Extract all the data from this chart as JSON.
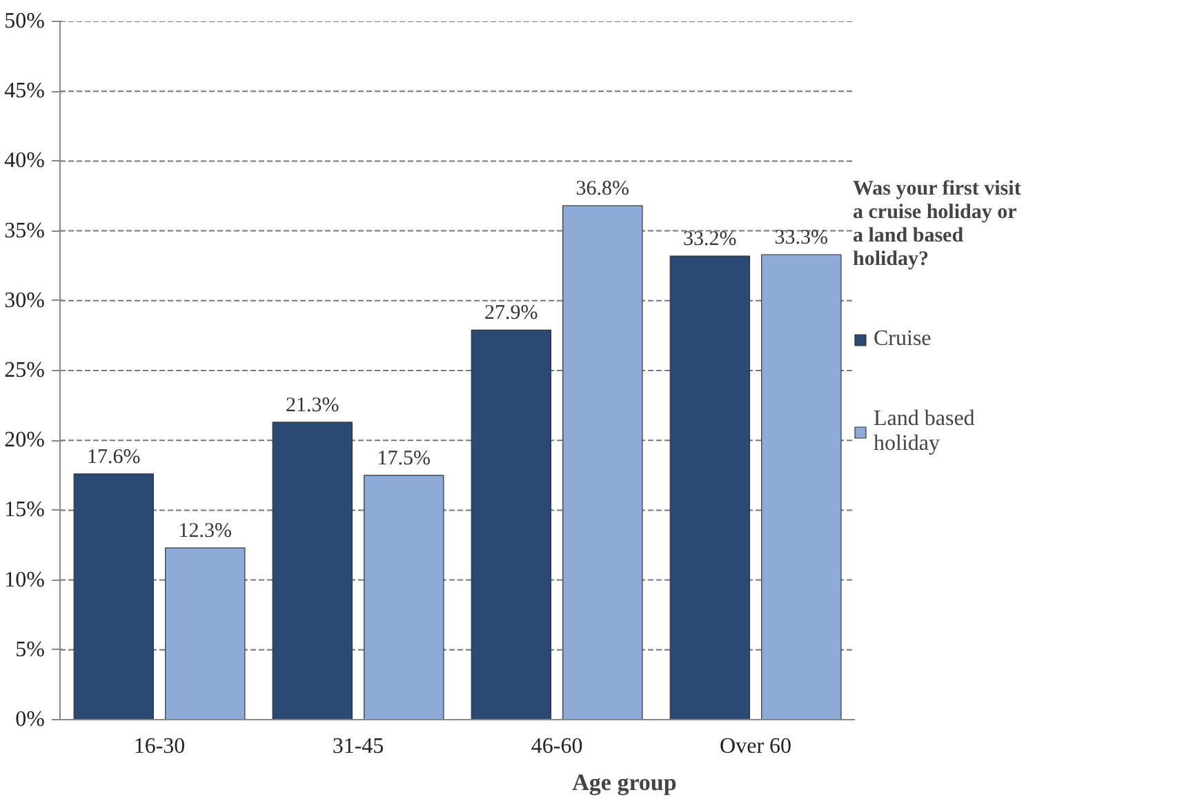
{
  "chart_data": {
    "type": "bar",
    "xlabel": "Age group",
    "legend_title": "Was your first visit a cruise holiday or a land based holiday?",
    "categories": [
      "16-30",
      "31-45",
      "46-60",
      "Over 60"
    ],
    "series": [
      {
        "name": "Cruise",
        "color": "#2b4a72",
        "values": [
          17.6,
          21.3,
          27.9,
          33.2
        ],
        "value_labels": [
          "17.6%",
          "21.3%",
          "27.9%",
          "33.2%"
        ]
      },
      {
        "name": "Land based holiday",
        "color": "#8eaad6",
        "values": [
          12.3,
          17.5,
          36.8,
          33.3
        ],
        "value_labels": [
          "12.3%",
          "17.5%",
          "36.8%",
          "33.3%"
        ]
      }
    ],
    "ylim": [
      0,
      50
    ],
    "yticks": [
      {
        "value": 0,
        "label": "0%"
      },
      {
        "value": 5,
        "label": "5%"
      },
      {
        "value": 10,
        "label": "10%"
      },
      {
        "value": 15,
        "label": "15%"
      },
      {
        "value": 20,
        "label": "20%"
      },
      {
        "value": 25,
        "label": "25%"
      },
      {
        "value": 30,
        "label": "30%"
      },
      {
        "value": 35,
        "label": "35%"
      },
      {
        "value": 40,
        "label": "40%"
      },
      {
        "value": 45,
        "label": "45%"
      },
      {
        "value": 50,
        "label": "50%"
      }
    ],
    "grid": "y",
    "legend": "right"
  }
}
